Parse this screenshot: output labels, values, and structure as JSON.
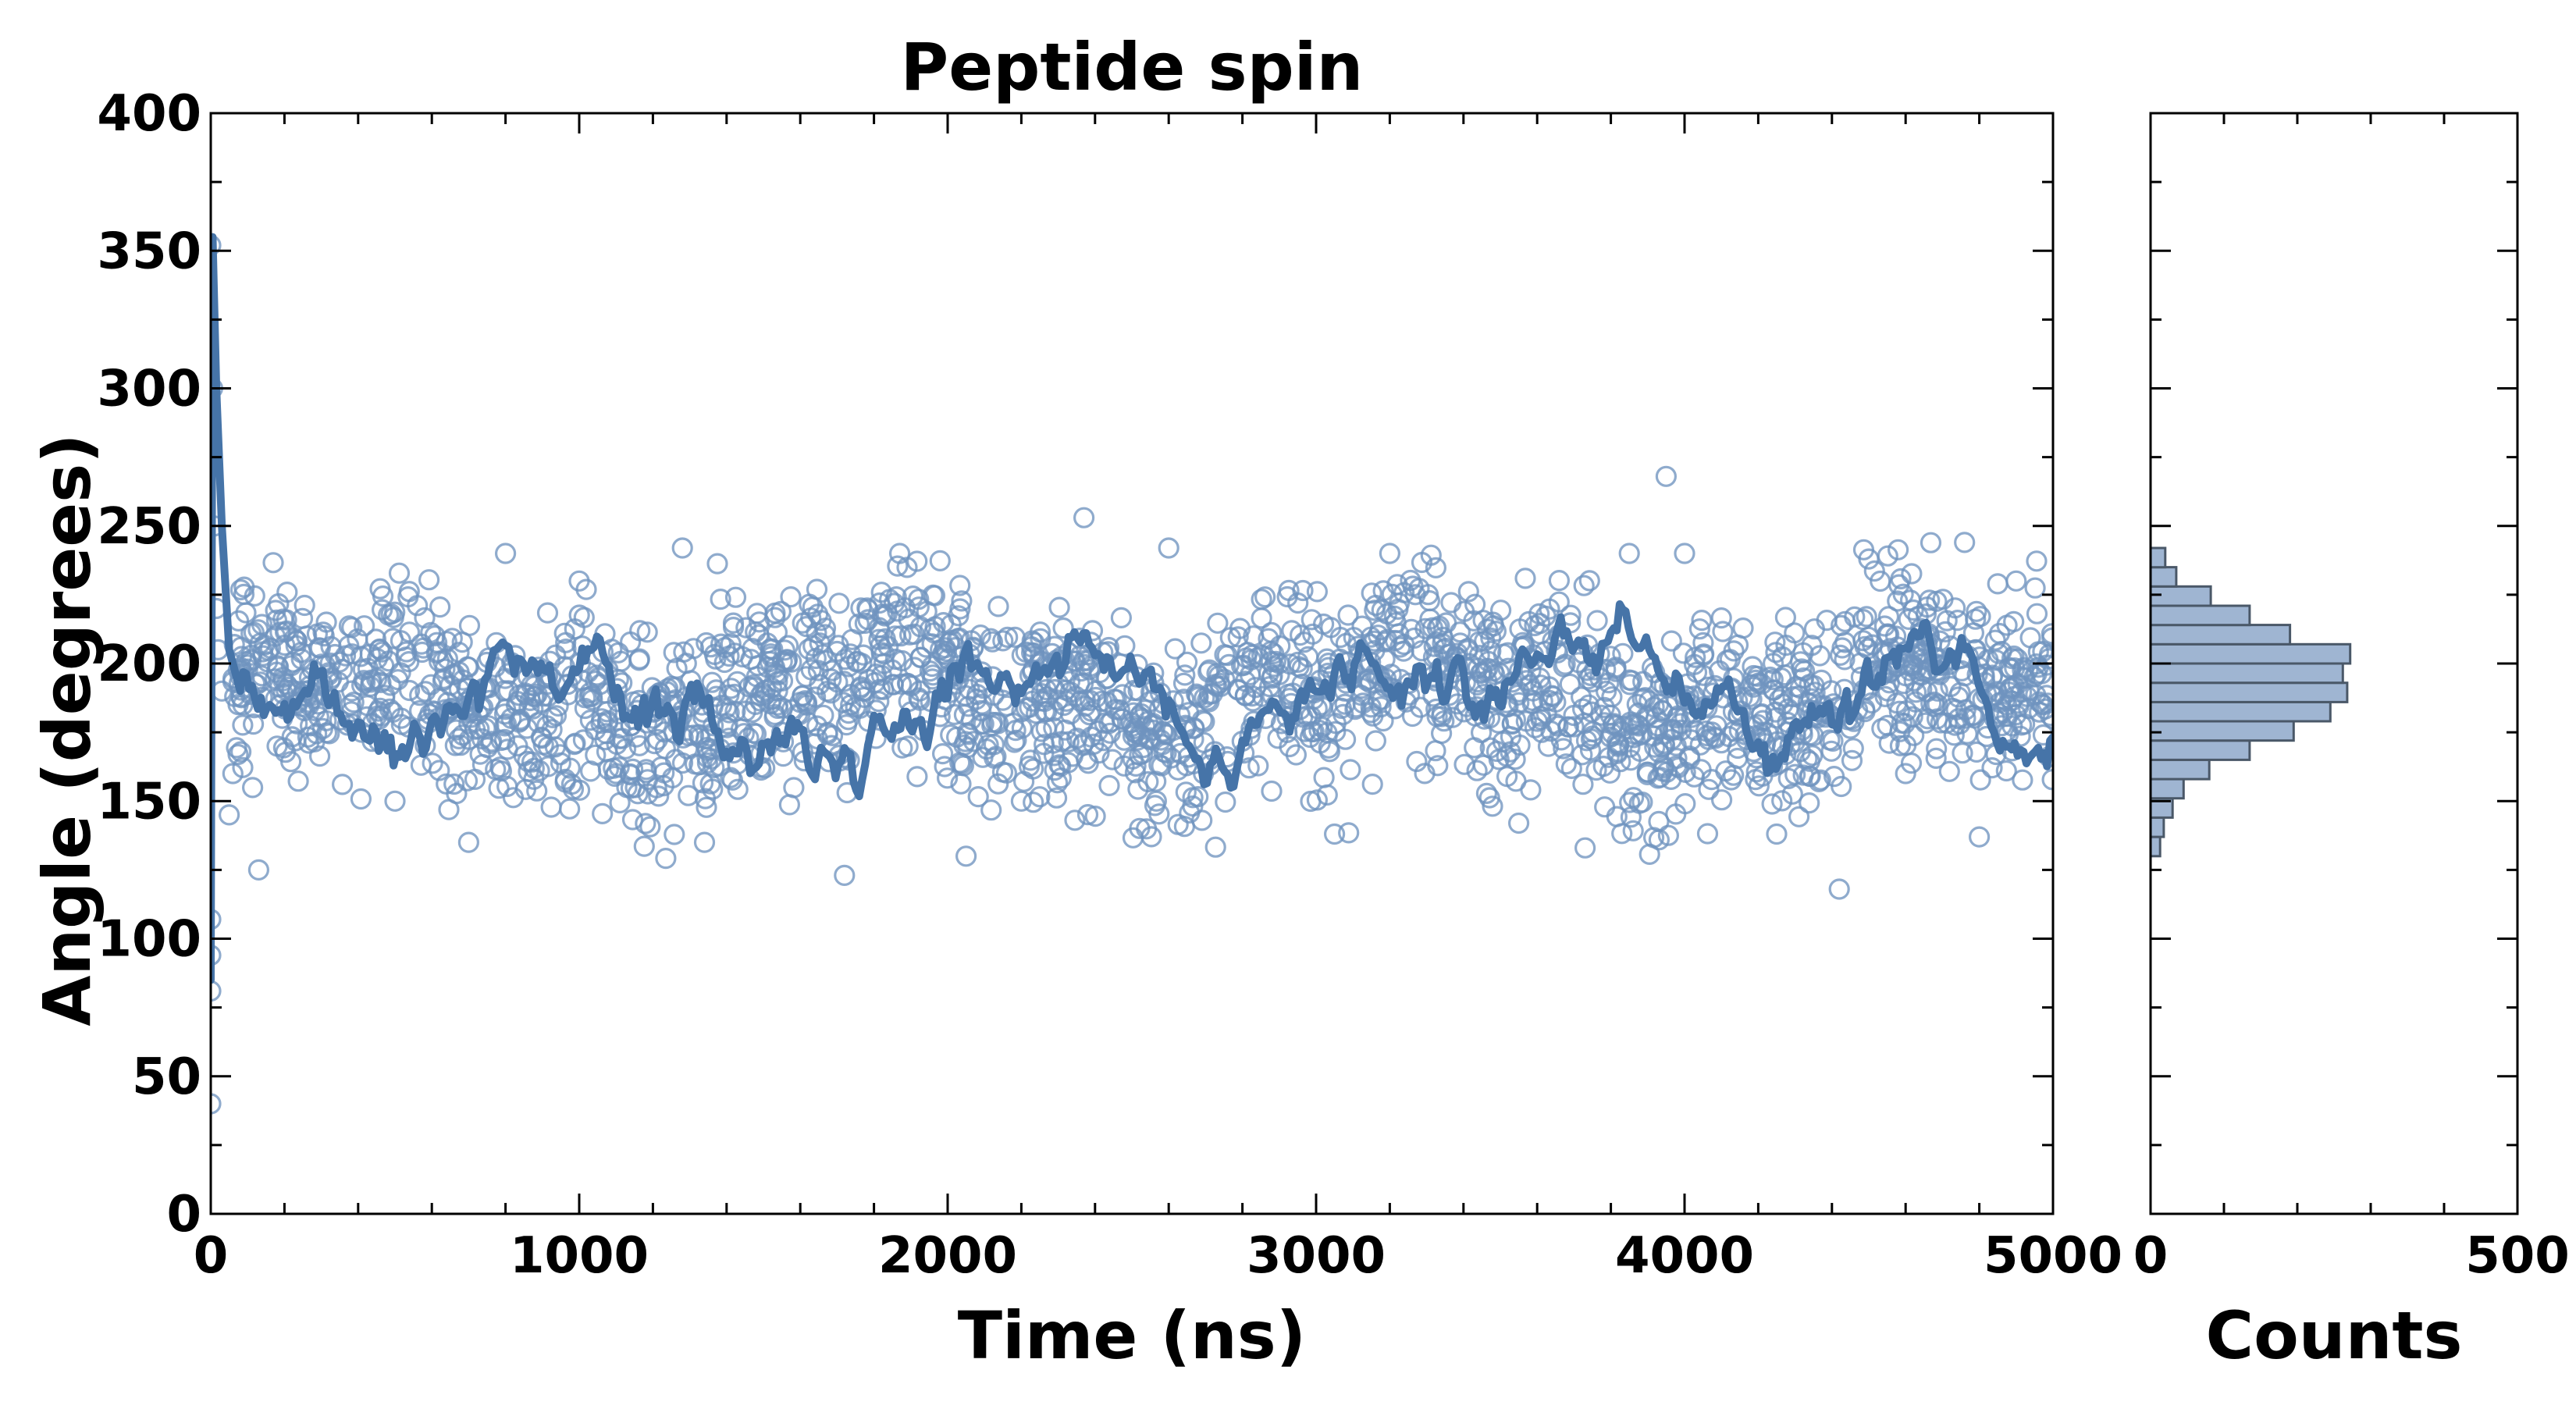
{
  "chart_data": [
    {
      "type": "scatter",
      "title": "Peptide spin",
      "xlabel": "Time (ns)",
      "ylabel": "Angle (degrees)",
      "xlim": [
        0,
        5000
      ],
      "ylim": [
        0,
        400
      ],
      "xticks": [
        "0",
        "1000",
        "2000",
        "3000",
        "4000",
        "5000"
      ],
      "yticks": [
        "0",
        "50",
        "100",
        "150",
        "200",
        "250",
        "300",
        "350",
        "400"
      ],
      "grid": false,
      "legend": "none",
      "colors": {
        "scatter": "#6f93bf",
        "line": "#4674a8"
      },
      "series": [
        {
          "kind": "scatter",
          "points": [
            [
              0,
              352
            ],
            [
              0,
              40
            ],
            [
              0,
              107
            ],
            [
              0,
              94
            ],
            [
              0,
              81
            ],
            [
              5,
              300
            ],
            [
              10,
              250
            ],
            [
              15,
              220
            ],
            [
              20,
              205
            ],
            [
              30,
              190
            ],
            [
              50,
              145
            ],
            [
              60,
              160
            ],
            [
              130,
              125
            ],
            [
              180,
              170
            ],
            [
              260,
              210
            ],
            [
              380,
              185
            ],
            [
              500,
              150
            ],
            [
              700,
              135
            ],
            [
              800,
              240
            ],
            [
              1000,
              230
            ],
            [
              1100,
              160
            ],
            [
              1280,
              242
            ],
            [
              1340,
              135
            ],
            [
              1550,
              175
            ],
            [
              1720,
              123
            ],
            [
              1870,
              240
            ],
            [
              2050,
              130
            ],
            [
              2200,
              150
            ],
            [
              2370,
              253
            ],
            [
              2600,
              242
            ],
            [
              2690,
              143
            ],
            [
              2900,
              200
            ],
            [
              3050,
              138
            ],
            [
              3200,
              240
            ],
            [
              3480,
              215
            ],
            [
              3550,
              142
            ],
            [
              3730,
              133
            ],
            [
              3850,
              240
            ],
            [
              3950,
              268
            ],
            [
              4000,
              240
            ],
            [
              4250,
              138
            ],
            [
              4420,
              118
            ],
            [
              4500,
              238
            ],
            [
              4600,
              160
            ],
            [
              4760,
              244
            ],
            [
              4800,
              137
            ],
            [
              4900,
              230
            ],
            [
              5000,
              180
            ]
          ]
        },
        {
          "kind": "line",
          "points": [
            [
              0,
              85
            ],
            [
              5,
              355
            ],
            [
              15,
              300
            ],
            [
              30,
              250
            ],
            [
              50,
              205
            ],
            [
              80,
              190
            ],
            [
              300,
              185
            ],
            [
              500,
              170
            ],
            [
              800,
              205
            ],
            [
              1000,
              195
            ],
            [
              1500,
              170
            ],
            [
              1750,
              168
            ],
            [
              2000,
              195
            ],
            [
              2500,
              205
            ],
            [
              2700,
              162
            ],
            [
              3000,
              190
            ],
            [
              3500,
              190
            ],
            [
              3600,
              205
            ],
            [
              3850,
              210
            ],
            [
              4000,
              190
            ],
            [
              4250,
              168
            ],
            [
              4500,
              195
            ],
            [
              4750,
              212
            ],
            [
              4850,
              165
            ],
            [
              5000,
              180
            ]
          ]
        }
      ]
    },
    {
      "type": "bar",
      "orientation": "horizontal",
      "xlabel": "Counts",
      "xlim": [
        0,
        500
      ],
      "xticks": [
        "0",
        "500"
      ],
      "ylim": [
        0,
        400
      ],
      "colors": {
        "fill": "#9fb5d2",
        "edge": "#4a5868"
      },
      "bins": [
        {
          "from": 130,
          "to": 137,
          "count": 13
        },
        {
          "from": 137,
          "to": 144,
          "count": 18
        },
        {
          "from": 144,
          "to": 151,
          "count": 30
        },
        {
          "from": 151,
          "to": 158,
          "count": 45
        },
        {
          "from": 158,
          "to": 165,
          "count": 80
        },
        {
          "from": 165,
          "to": 172,
          "count": 135
        },
        {
          "from": 172,
          "to": 179,
          "count": 195
        },
        {
          "from": 179,
          "to": 186,
          "count": 245
        },
        {
          "from": 186,
          "to": 193,
          "count": 268
        },
        {
          "from": 193,
          "to": 200,
          "count": 262
        },
        {
          "from": 200,
          "to": 207,
          "count": 272
        },
        {
          "from": 207,
          "to": 214,
          "count": 190
        },
        {
          "from": 214,
          "to": 221,
          "count": 135
        },
        {
          "from": 221,
          "to": 228,
          "count": 82
        },
        {
          "from": 228,
          "to": 235,
          "count": 35
        },
        {
          "from": 235,
          "to": 242,
          "count": 20
        }
      ]
    }
  ]
}
